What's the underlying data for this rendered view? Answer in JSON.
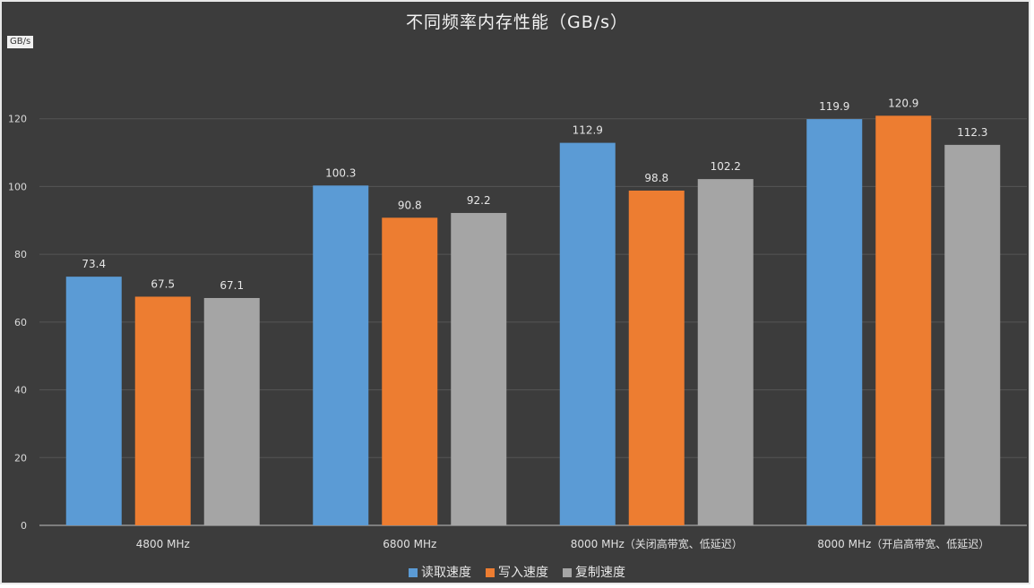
{
  "chart_data": {
    "type": "bar",
    "title": "不同频率内存性能（GB/s）",
    "y_unit_label": "GB/s",
    "ylim": [
      0,
      140
    ],
    "yticks": [
      0,
      20,
      40,
      60,
      80,
      100,
      120
    ],
    "grid": true,
    "legend_position": "bottom",
    "categories": [
      "4800 MHz",
      "6800 MHz",
      "8000 MHz（关闭高带宽、低延迟）",
      "8000 MHz（开启高带宽、低延迟）"
    ],
    "series": [
      {
        "name": "读取速度",
        "color": "#5b9bd5",
        "values": [
          73.4,
          100.3,
          112.9,
          119.9
        ]
      },
      {
        "name": "写入速度",
        "color": "#ed7d31",
        "values": [
          67.5,
          90.8,
          98.8,
          120.9
        ]
      },
      {
        "name": "复制速度",
        "color": "#a5a5a5",
        "values": [
          67.1,
          92.2,
          102.2,
          112.3
        ]
      }
    ]
  }
}
